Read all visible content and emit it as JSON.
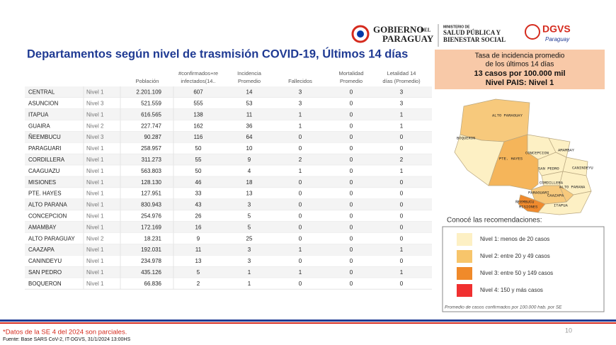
{
  "header": {
    "gov_line1": "GOBIERNO",
    "gov_del": "DEL",
    "gov_line2": "PARAGUAY",
    "ministry_small": "MINISTERIO DE",
    "ministry_line1": "SALUD PÚBLICA Y",
    "ministry_line2": "BIENESTAR SOCIAL",
    "dgvs": "DGVS",
    "dgvs_sub": "Paraguay"
  },
  "title": "Departamentos según nivel de trasmisión COVID-19, Últimos 14 días",
  "summary": {
    "line1": "Tasa de incidencia promedio",
    "line2": "de los últimos 14 días",
    "line3": "13 casos por 100.000 mil",
    "line4": "Nivel PAIS: Nivel 1"
  },
  "table": {
    "columns": [
      "Población",
      "#confirmados+re infectados(14..",
      "Incidencia Promedio",
      "Fallecidos",
      "Mortalidad Promedio",
      "Letalidad 14 días (Promedio)"
    ],
    "rows": [
      [
        "CENTRAL",
        "Nivel 1",
        "2.201.109",
        "607",
        "14",
        "3",
        "0",
        "3"
      ],
      [
        "ASUNCION",
        "Nivel 3",
        "521.559",
        "555",
        "53",
        "3",
        "0",
        "3"
      ],
      [
        "ITAPUA",
        "Nivel 1",
        "616.565",
        "138",
        "11",
        "1",
        "0",
        "1"
      ],
      [
        "GUAIRA",
        "Nivel 2",
        "227.747",
        "162",
        "36",
        "1",
        "0",
        "1"
      ],
      [
        "ÑEEMBUCU",
        "Nivel 3",
        "90.287",
        "116",
        "64",
        "0",
        "0",
        "0"
      ],
      [
        "PARAGUARI",
        "Nivel 1",
        "258.957",
        "50",
        "10",
        "0",
        "0",
        "0"
      ],
      [
        "CORDILLERA",
        "Nivel 1",
        "311.273",
        "55",
        "9",
        "2",
        "0",
        "2"
      ],
      [
        "CAAGUAZU",
        "Nivel 1",
        "563.803",
        "50",
        "4",
        "1",
        "0",
        "1"
      ],
      [
        "MISIONES",
        "Nivel 1",
        "128.130",
        "46",
        "18",
        "0",
        "0",
        "0"
      ],
      [
        "PTE. HAYES",
        "Nivel 1",
        "127.951",
        "33",
        "13",
        "0",
        "0",
        "0"
      ],
      [
        "ALTO PARANA",
        "Nivel 1",
        "830.943",
        "43",
        "3",
        "0",
        "0",
        "0"
      ],
      [
        "CONCEPCION",
        "Nivel 1",
        "254.976",
        "26",
        "5",
        "0",
        "0",
        "0"
      ],
      [
        "AMAMBAY",
        "Nivel 1",
        "172.169",
        "16",
        "5",
        "0",
        "0",
        "0"
      ],
      [
        "ALTO PARAGUAY",
        "Nivel 2",
        "18.231",
        "9",
        "25",
        "0",
        "0",
        "0"
      ],
      [
        "CAAZAPA",
        "Nivel 1",
        "192.031",
        "11",
        "3",
        "1",
        "0",
        "1"
      ],
      [
        "CANINDEYU",
        "Nivel 1",
        "234.978",
        "13",
        "3",
        "0",
        "0",
        "0"
      ],
      [
        "SAN PEDRO",
        "Nivel 1",
        "435.126",
        "5",
        "1",
        "1",
        "0",
        "1"
      ],
      [
        "BOQUERON",
        "Nivel 1",
        "66.836",
        "2",
        "1",
        "0",
        "0",
        "0"
      ]
    ]
  },
  "map": {
    "labels": [
      "ALTO PARAGUAY",
      "BOQUERON",
      "PTE. HAYES",
      "CONCEPCION",
      "AMAMBAY",
      "SAN PEDRO",
      "CANINDEYU",
      "CORDILLERA",
      "ALTO PARANA",
      "PARAGUARI",
      "CAAZAPA",
      "ÑEEMBUCU",
      "MISIONES",
      "ITAPUA"
    ]
  },
  "legend": {
    "heading": "Conocé las recomendaciones:",
    "items": [
      "Nivel 1: menos de 20 casos",
      "Nivel 2: entre 20 y 49 casos",
      "Nivel 3: entre 50 y 149 casos",
      "Nivel 4: 150 y más casos"
    ],
    "note": "Promedio de casos confirmados por 100.000 hab. por SE"
  },
  "footer": {
    "note": "*Datos de la SE 4 del 2024 son parciales.",
    "source": "Fuente: Base SARS CoV-2, IT-DGVS, 31/1/2024 13:00HS",
    "page": "10"
  }
}
